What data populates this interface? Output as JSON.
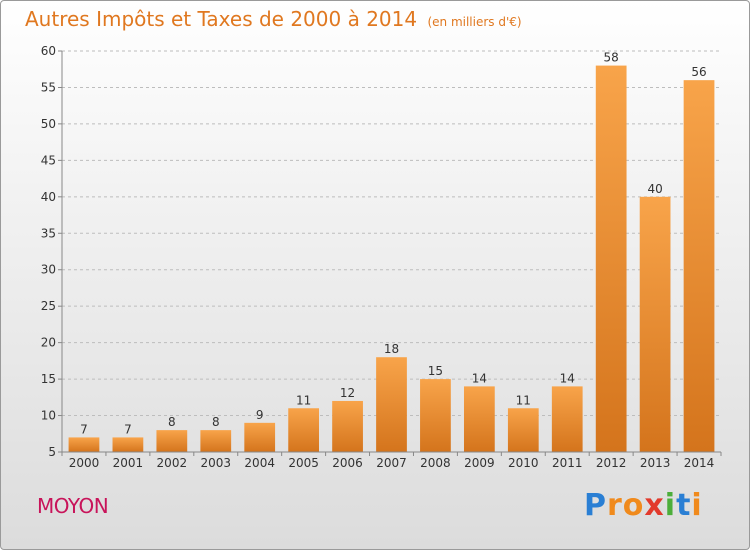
{
  "title": "Autres Impôts et Taxes de 2000 à 2014",
  "subtitle": "(en milliers d'€)",
  "commune": "MOYON",
  "logo": {
    "letters": [
      "P",
      "r",
      "o",
      "x",
      "i",
      "t",
      "i"
    ],
    "colors": [
      "#2a7fd4",
      "#f08a1c",
      "#f08a1c",
      "#e23a2c",
      "#4cae3a",
      "#2a7fd4",
      "#f08a1c"
    ]
  },
  "chart_data": {
    "type": "bar",
    "title": "Autres Impôts et Taxes de 2000 à 2014",
    "subtitle": "(en milliers d'€)",
    "categories": [
      "2000",
      "2001",
      "2002",
      "2003",
      "2004",
      "2005",
      "2006",
      "2007",
      "2008",
      "2009",
      "2010",
      "2011",
      "2012",
      "2013",
      "2014"
    ],
    "values": [
      7,
      7,
      8,
      8,
      9,
      11,
      12,
      18,
      15,
      14,
      11,
      14,
      58,
      40,
      56
    ],
    "ylim": [
      5,
      60
    ],
    "yticks": [
      "5",
      "10",
      "15",
      "20",
      "25",
      "30",
      "35",
      "40",
      "45",
      "50",
      "55",
      "60"
    ],
    "grid": true,
    "bar_color": "#f08a2a"
  }
}
